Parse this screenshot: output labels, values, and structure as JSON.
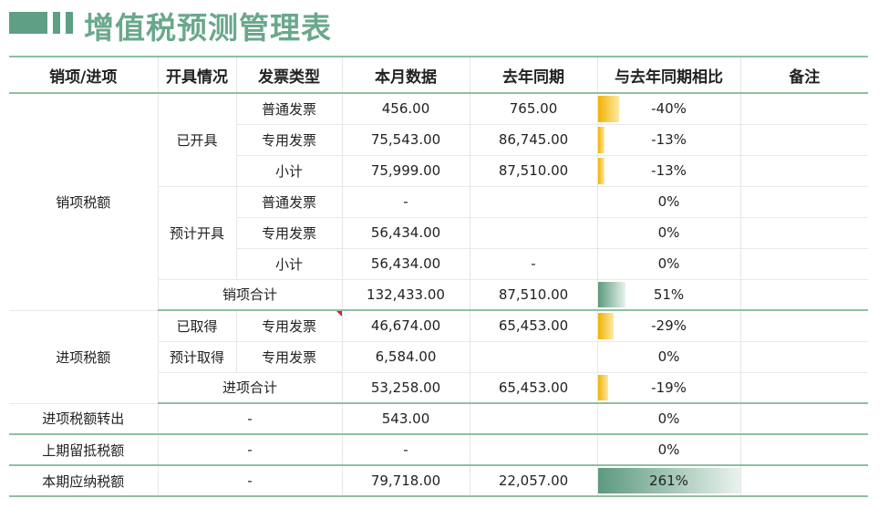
{
  "title": "增值税预测管理表",
  "colors": {
    "accent": "#6aa88c",
    "neg_bar": "#f2b200",
    "pos_bar": "#5c9a7e"
  },
  "headers": [
    "销项/进项",
    "开具情况",
    "发票类型",
    "本月数据",
    "去年同期",
    "与去年同期相比",
    "备注"
  ],
  "groups": {
    "output": "销项税额",
    "input": "进项税额"
  },
  "status": {
    "issued": "已开具",
    "est_issue": "预计开具",
    "acquired": "已取得",
    "est_acquire": "预计取得"
  },
  "rows": {
    "r1": {
      "type": "普通发票",
      "cur": "456.00",
      "last": "765.00",
      "ratio": "-40%",
      "ratio_value": -0.4
    },
    "r2": {
      "type": "专用发票",
      "cur": "75,543.00",
      "last": "86,745.00",
      "ratio": "-13%",
      "ratio_value": -0.13
    },
    "r3": {
      "type": "小计",
      "cur": "75,999.00",
      "last": "87,510.00",
      "ratio": "-13%",
      "ratio_value": -0.13
    },
    "r4": {
      "type": "普通发票",
      "cur": "-",
      "last": "",
      "ratio": "0%",
      "ratio_value": 0
    },
    "r5": {
      "type": "专用发票",
      "cur": "56,434.00",
      "last": "",
      "ratio": "0%",
      "ratio_value": 0
    },
    "r6": {
      "type": "小计",
      "cur": "56,434.00",
      "last": "-",
      "ratio": "0%",
      "ratio_value": 0
    },
    "r7": {
      "label": "销项合计",
      "cur": "132,433.00",
      "last": "87,510.00",
      "ratio": "51%",
      "ratio_value": 0.51
    },
    "r8": {
      "type": "专用发票",
      "cur": "46,674.00",
      "last": "65,453.00",
      "ratio": "-29%",
      "ratio_value": -0.29
    },
    "r9": {
      "type": "专用发票",
      "cur": "6,584.00",
      "last": "",
      "ratio": "0%",
      "ratio_value": 0
    },
    "r10": {
      "label": "进项合计",
      "cur": "53,258.00",
      "last": "65,453.00",
      "ratio": "-19%",
      "ratio_value": -0.19
    },
    "r11": {
      "label": "进项税额转出",
      "mid": "-",
      "cur": "543.00",
      "last": "",
      "ratio": "0%",
      "ratio_value": 0
    },
    "r12": {
      "label": "上期留抵税额",
      "mid": "-",
      "cur": "-",
      "last": "",
      "ratio": "0%",
      "ratio_value": 0
    },
    "r13": {
      "label": "本期应纳税额",
      "mid": "-",
      "cur": "79,718.00",
      "last": "22,057.00",
      "ratio": "261%",
      "ratio_value": 2.61
    }
  }
}
